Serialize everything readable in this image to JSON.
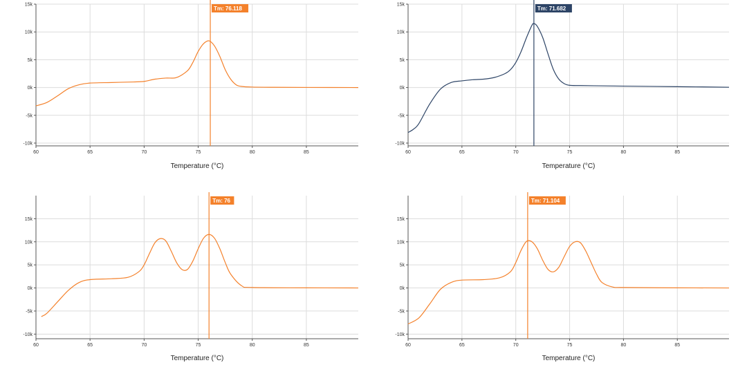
{
  "colors": {
    "orange": "#f4812b",
    "navy": "#2d4466",
    "grid": "#dcdcdc",
    "axis": "#555555"
  },
  "chart_data": [
    {
      "type": "line",
      "xlabel": "Temperature (°C)",
      "xlim": [
        60,
        89.8
      ],
      "ylim": [
        -10500,
        15000
      ],
      "x_ticks": [
        60,
        65,
        70,
        75,
        80,
        85
      ],
      "x_tick_labels": [
        "60",
        "65",
        "70",
        "75",
        "80",
        "85"
      ],
      "y_ticks": [
        15000,
        10000,
        5000,
        0,
        -5000,
        -10000
      ],
      "y_tick_labels": [
        "15k",
        "10k",
        "5k",
        "0k",
        "-5k",
        "-10k"
      ],
      "grid": true,
      "color": "#f4812b",
      "tm_label": "Tm: 76.118",
      "tm_value": 76.118,
      "series": [
        {
          "x": [
            60,
            61,
            62,
            63,
            64,
            65,
            67,
            69,
            70,
            71,
            72,
            73,
            74,
            74.5,
            75,
            75.5,
            76,
            76.5,
            77,
            77.5,
            78,
            78.5,
            79,
            80,
            82,
            85,
            89.8
          ],
          "values": [
            -3300,
            -2700,
            -1500,
            -200,
            500,
            800,
            900,
            1000,
            1100,
            1500,
            1700,
            1800,
            3000,
            4500,
            6500,
            7900,
            8400,
            7500,
            5600,
            3200,
            1500,
            500,
            200,
            80,
            40,
            20,
            0
          ]
        }
      ]
    },
    {
      "type": "line",
      "xlabel": "Temperature (°C)",
      "xlim": [
        60,
        89.8
      ],
      "ylim": [
        -10500,
        15000
      ],
      "x_ticks": [
        60,
        65,
        70,
        75,
        80,
        85
      ],
      "x_tick_labels": [
        "60",
        "65",
        "70",
        "75",
        "80",
        "85"
      ],
      "y_ticks": [
        15000,
        10000,
        5000,
        0,
        -5000,
        -10000
      ],
      "y_tick_labels": [
        "15k",
        "10k",
        "5k",
        "0k",
        "-5k",
        "-10k"
      ],
      "grid": true,
      "color": "#2d4466",
      "tm_label": "Tm: 71.682",
      "tm_value": 71.682,
      "series": [
        {
          "x": [
            60,
            60.5,
            61,
            62,
            63,
            64,
            65,
            66,
            67,
            68,
            69,
            69.5,
            70,
            70.5,
            71,
            71.5,
            71.7,
            72,
            72.5,
            73,
            73.5,
            74,
            74.5,
            75,
            76,
            78,
            80,
            85,
            89.8
          ],
          "values": [
            -8100,
            -7500,
            -6500,
            -3000,
            -300,
            900,
            1200,
            1400,
            1500,
            1800,
            2500,
            3200,
            4500,
            6500,
            9000,
            11200,
            11500,
            11000,
            9000,
            6000,
            3200,
            1500,
            700,
            400,
            350,
            300,
            250,
            150,
            50
          ]
        }
      ]
    },
    {
      "type": "line",
      "xlabel": "Temperature (°C)",
      "xlim": [
        60,
        89.8
      ],
      "ylim": [
        -11000,
        20000
      ],
      "x_ticks": [
        60,
        65,
        70,
        75,
        80,
        85
      ],
      "x_tick_labels": [
        "60",
        "65",
        "70",
        "75",
        "80",
        "85"
      ],
      "y_ticks": [
        15000,
        10000,
        5000,
        0,
        -5000,
        -10000
      ],
      "y_tick_labels": [
        "15k",
        "10k",
        "5k",
        "0k",
        "-5k",
        "-10k"
      ],
      "grid": true,
      "color": "#f4812b",
      "tm_label": "Tm: 76",
      "tm_value": 76,
      "series": [
        {
          "x": [
            60.5,
            61,
            62,
            63,
            64,
            65,
            67,
            68.5,
            69.5,
            70,
            70.5,
            71,
            71.5,
            72,
            72.5,
            73,
            73.5,
            74,
            74.5,
            75,
            75.5,
            76,
            76.5,
            77,
            77.5,
            78,
            79,
            80,
            85,
            89.8
          ],
          "values": [
            -6200,
            -5500,
            -3000,
            -500,
            1200,
            1800,
            2000,
            2300,
            3500,
            5000,
            7500,
            9800,
            10700,
            10200,
            8000,
            5500,
            4000,
            4000,
            5800,
            8500,
            10800,
            11600,
            10800,
            8500,
            5500,
            3000,
            500,
            100,
            30,
            0
          ]
        }
      ]
    },
    {
      "type": "line",
      "xlabel": "Temperature (°C)",
      "xlim": [
        60,
        89.8
      ],
      "ylim": [
        -11000,
        20000
      ],
      "x_ticks": [
        60,
        65,
        70,
        75,
        80,
        85
      ],
      "x_tick_labels": [
        "60",
        "65",
        "70",
        "75",
        "80",
        "85"
      ],
      "y_ticks": [
        15000,
        10000,
        5000,
        0,
        -5000,
        -10000
      ],
      "y_tick_labels": [
        "15k",
        "10k",
        "5k",
        "0k",
        "-5k",
        "-10k"
      ],
      "grid": true,
      "color": "#f4812b",
      "tm_label": "Tm: 71.104",
      "tm_value": 71.104,
      "series": [
        {
          "x": [
            60,
            61,
            62,
            63,
            64,
            65,
            67,
            68.5,
            69.5,
            70,
            70.5,
            71,
            71.5,
            72,
            72.5,
            73,
            73.5,
            74,
            74.5,
            75,
            75.5,
            76,
            76.5,
            77,
            77.5,
            78,
            79,
            80,
            85,
            89.8
          ],
          "values": [
            -7800,
            -6500,
            -3500,
            -300,
            1200,
            1700,
            1800,
            2200,
            3500,
            5500,
            8200,
            10100,
            10000,
            8500,
            6000,
            4000,
            3500,
            4500,
            6800,
            9000,
            10000,
            9800,
            8000,
            5500,
            3000,
            1200,
            200,
            100,
            30,
            0
          ]
        }
      ]
    }
  ]
}
